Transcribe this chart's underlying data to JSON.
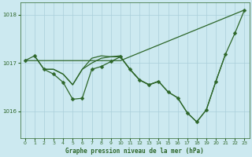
{
  "title": "Graphe pression niveau de la mer (hPa)",
  "background_color": "#cce9f0",
  "grid_color": "#aacfda",
  "line_color": "#2d6629",
  "xlim": [
    -0.5,
    23.5
  ],
  "ylim": [
    1015.45,
    1018.25
  ],
  "yticks": [
    1016,
    1017,
    1018
  ],
  "xticks": [
    0,
    1,
    2,
    3,
    4,
    5,
    6,
    7,
    8,
    9,
    10,
    11,
    12,
    13,
    14,
    15,
    16,
    17,
    18,
    19,
    20,
    21,
    22,
    23
  ],
  "line1_x": [
    0,
    1,
    2,
    3,
    4,
    5,
    6,
    7,
    8,
    9,
    10,
    23
  ],
  "line1_y": [
    1017.05,
    1017.05,
    1017.05,
    1017.05,
    1017.05,
    1017.05,
    1017.05,
    1017.05,
    1017.05,
    1017.05,
    1017.05,
    1018.1
  ],
  "line2_x": [
    0,
    1,
    2,
    3,
    4,
    5,
    6,
    7,
    8,
    9,
    10,
    11,
    12,
    13,
    14,
    15,
    16,
    17,
    18,
    19,
    20,
    21,
    22,
    23
  ],
  "line2_y": [
    1017.05,
    1017.15,
    1016.87,
    1016.77,
    1016.6,
    1016.25,
    1016.27,
    1016.87,
    1016.93,
    1017.03,
    1017.13,
    1016.87,
    1016.65,
    1016.55,
    1016.62,
    1016.4,
    1016.28,
    1015.97,
    1015.78,
    1016.03,
    1016.62,
    1017.18,
    1017.62,
    1018.1
  ],
  "line3_x": [
    1,
    2,
    3,
    4,
    5,
    6,
    7,
    8,
    9,
    10
  ],
  "line3_y": [
    1017.15,
    1016.87,
    1016.87,
    1016.77,
    1016.55,
    1016.87,
    1017.0,
    1017.1,
    1017.13,
    1017.15
  ],
  "line4_x": [
    2,
    3,
    4,
    5,
    6,
    7,
    8,
    9,
    10,
    11,
    12,
    13,
    14
  ],
  "line4_y": [
    1016.87,
    1016.87,
    1016.77,
    1016.55,
    1016.87,
    1017.1,
    1017.15,
    1017.13,
    1017.13,
    1016.87,
    1016.65,
    1016.55,
    1016.62
  ],
  "line5_x": [
    10,
    11,
    12,
    13,
    14,
    15,
    16,
    17,
    18,
    19,
    20,
    21
  ],
  "line5_y": [
    1017.13,
    1016.87,
    1016.65,
    1016.55,
    1016.62,
    1016.4,
    1016.28,
    1015.97,
    1015.78,
    1016.03,
    1016.62,
    1017.18
  ]
}
